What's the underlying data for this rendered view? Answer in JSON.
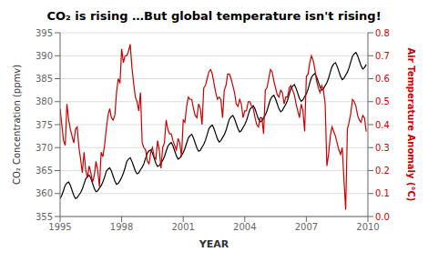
{
  "chart_data": {
    "type": "line",
    "title": "CO₂ is rising …But global temperature isn't rising!",
    "xlabel": "YEAR",
    "ylabel": "CO₂ Concentration (ppmv)",
    "y2label": "Air Temperature Anomaly (°C)",
    "xlim": [
      1995,
      2010
    ],
    "xticks": [
      1995,
      1998,
      2001,
      2004,
      2007,
      2010
    ],
    "ylim": [
      355,
      395
    ],
    "yticks": [
      355,
      360,
      365,
      370,
      375,
      380,
      385,
      390,
      395
    ],
    "y2lim": [
      0,
      0.8
    ],
    "y2ticks": [
      {
        "value": 0,
        "label": "0.0"
      },
      0.1,
      0.2,
      0.3,
      0.4,
      0.5,
      0.6,
      0.7,
      0.8
    ],
    "grid": true,
    "x": [
      1995.0,
      1995.083,
      1995.167,
      1995.25,
      1995.333,
      1995.417,
      1995.5,
      1995.583,
      1995.667,
      1995.75,
      1995.833,
      1995.917,
      1996.0,
      1996.083,
      1996.167,
      1996.25,
      1996.333,
      1996.417,
      1996.5,
      1996.583,
      1996.667,
      1996.75,
      1996.833,
      1996.917,
      1997.0,
      1997.083,
      1997.167,
      1997.25,
      1997.333,
      1997.417,
      1997.5,
      1997.583,
      1997.667,
      1997.75,
      1997.833,
      1997.917,
      1998.0,
      1998.083,
      1998.167,
      1998.25,
      1998.333,
      1998.417,
      1998.5,
      1998.583,
      1998.667,
      1998.75,
      1998.833,
      1998.917,
      1999.0,
      1999.083,
      1999.167,
      1999.25,
      1999.333,
      1999.417,
      1999.5,
      1999.583,
      1999.667,
      1999.75,
      1999.833,
      1999.917,
      2000.0,
      2000.083,
      2000.167,
      2000.25,
      2000.333,
      2000.417,
      2000.5,
      2000.583,
      2000.667,
      2000.75,
      2000.833,
      2000.917,
      2001.0,
      2001.083,
      2001.167,
      2001.25,
      2001.333,
      2001.417,
      2001.5,
      2001.583,
      2001.667,
      2001.75,
      2001.833,
      2001.917,
      2002.0,
      2002.083,
      2002.167,
      2002.25,
      2002.333,
      2002.417,
      2002.5,
      2002.583,
      2002.667,
      2002.75,
      2002.833,
      2002.917,
      2003.0,
      2003.083,
      2003.167,
      2003.25,
      2003.333,
      2003.417,
      2003.5,
      2003.583,
      2003.667,
      2003.75,
      2003.833,
      2003.917,
      2004.0,
      2004.083,
      2004.167,
      2004.25,
      2004.333,
      2004.417,
      2004.5,
      2004.583,
      2004.667,
      2004.75,
      2004.833,
      2004.917,
      2005.0,
      2005.083,
      2005.167,
      2005.25,
      2005.333,
      2005.417,
      2005.5,
      2005.583,
      2005.667,
      2005.75,
      2005.833,
      2005.917,
      2006.0,
      2006.083,
      2006.167,
      2006.25,
      2006.333,
      2006.417,
      2006.5,
      2006.583,
      2006.667,
      2006.75,
      2006.833,
      2006.917,
      2007.0,
      2007.083,
      2007.167,
      2007.25,
      2007.333,
      2007.417,
      2007.5,
      2007.583,
      2007.667,
      2007.75,
      2007.833,
      2007.917,
      2008.0,
      2008.083,
      2008.167,
      2008.25,
      2008.333,
      2008.417,
      2008.5,
      2008.583,
      2008.667,
      2008.75,
      2008.833,
      2008.917,
      2009.0,
      2009.083,
      2009.167,
      2009.25,
      2009.333,
      2009.417,
      2009.5,
      2009.583,
      2009.667,
      2009.75,
      2009.833,
      2009.917
    ],
    "series": [
      {
        "color": "#000000",
        "values": [
          358.9,
          359.6,
          360.7,
          361.8,
          362.3,
          362.5,
          361.8,
          360.7,
          359.6,
          358.9,
          359.1,
          359.7,
          360.2,
          361.0,
          362.1,
          363.2,
          363.7,
          364.0,
          363.3,
          362.2,
          361.1,
          360.4,
          360.6,
          361.2,
          361.7,
          362.5,
          363.6,
          364.8,
          365.3,
          365.6,
          364.9,
          363.8,
          362.7,
          362.0,
          362.2,
          362.8,
          363.5,
          364.4,
          365.6,
          367.0,
          367.5,
          367.8,
          367.0,
          366.0,
          364.9,
          364.3,
          364.5,
          365.2,
          365.7,
          366.5,
          367.7,
          368.8,
          369.3,
          369.5,
          368.8,
          367.7,
          366.6,
          365.9,
          366.1,
          366.7,
          367.2,
          368.0,
          369.2,
          370.3,
          370.8,
          371.1,
          370.4,
          369.3,
          368.2,
          367.5,
          367.7,
          368.3,
          368.9,
          369.8,
          371.0,
          372.1,
          372.6,
          372.9,
          372.1,
          371.0,
          369.9,
          369.2,
          369.4,
          370.1,
          370.7,
          371.6,
          372.8,
          374.1,
          374.6,
          374.9,
          374.1,
          373.0,
          371.9,
          371.2,
          371.5,
          372.2,
          372.8,
          373.7,
          375.0,
          376.2,
          376.7,
          377.0,
          376.3,
          375.2,
          374.1,
          373.4,
          373.7,
          374.4,
          375.0,
          375.9,
          377.1,
          378.3,
          378.8,
          379.1,
          378.4,
          377.3,
          376.2,
          375.6,
          375.8,
          376.5,
          377.1,
          378.0,
          379.3,
          380.5,
          381.1,
          381.4,
          380.6,
          379.5,
          378.4,
          377.8,
          378.1,
          378.8,
          379.4,
          380.3,
          381.6,
          382.8,
          383.4,
          383.7,
          382.9,
          381.8,
          380.7,
          380.1,
          380.4,
          381.1,
          381.7,
          382.7,
          384.1,
          385.3,
          385.8,
          386.1,
          385.4,
          384.3,
          383.2,
          382.5,
          382.8,
          383.5,
          384.1,
          385.1,
          386.4,
          387.6,
          388.2,
          388.5,
          387.7,
          386.6,
          385.5,
          384.8,
          385.1,
          385.8,
          386.4,
          387.4,
          388.7,
          389.9,
          390.4,
          390.7,
          390.0,
          388.9,
          387.8,
          387.1,
          387.4,
          388.1
        ]
      },
      {
        "color": "#cc0000",
        "axis": "y2",
        "values": [
          0.47,
          0.4,
          0.33,
          0.31,
          0.49,
          0.42,
          0.38,
          0.35,
          0.32,
          0.38,
          0.39,
          0.3,
          0.25,
          0.19,
          0.28,
          0.2,
          0.17,
          0.22,
          0.19,
          0.15,
          0.18,
          0.24,
          0.2,
          0.13,
          0.28,
          0.26,
          0.31,
          0.38,
          0.44,
          0.47,
          0.43,
          0.42,
          0.44,
          0.54,
          0.6,
          0.58,
          0.73,
          0.67,
          0.7,
          0.7,
          0.72,
          0.75,
          0.65,
          0.58,
          0.52,
          0.5,
          0.46,
          0.54,
          0.32,
          0.3,
          0.29,
          0.24,
          0.23,
          0.28,
          0.3,
          0.26,
          0.25,
          0.33,
          0.29,
          0.21,
          0.3,
          0.32,
          0.42,
          0.38,
          0.36,
          0.36,
          0.33,
          0.31,
          0.29,
          0.34,
          0.32,
          0.26,
          0.42,
          0.41,
          0.48,
          0.52,
          0.51,
          0.51,
          0.47,
          0.44,
          0.43,
          0.49,
          0.47,
          0.4,
          0.56,
          0.57,
          0.6,
          0.63,
          0.64,
          0.62,
          0.58,
          0.54,
          0.51,
          0.52,
          0.51,
          0.43,
          0.55,
          0.57,
          0.62,
          0.62,
          0.6,
          0.57,
          0.54,
          0.49,
          0.48,
          0.51,
          0.49,
          0.43,
          0.46,
          0.46,
          0.5,
          0.5,
          0.48,
          0.47,
          0.43,
          0.4,
          0.39,
          0.43,
          0.43,
          0.36,
          0.55,
          0.56,
          0.6,
          0.64,
          0.63,
          0.59,
          0.56,
          0.53,
          0.52,
          0.55,
          0.54,
          0.49,
          0.52,
          0.52,
          0.56,
          0.57,
          0.55,
          0.53,
          0.49,
          0.46,
          0.43,
          0.49,
          0.46,
          0.37,
          0.61,
          0.62,
          0.67,
          0.7,
          0.68,
          0.64,
          0.59,
          0.56,
          0.54,
          0.57,
          0.55,
          0.49,
          0.22,
          0.27,
          0.35,
          0.39,
          0.37,
          0.35,
          0.32,
          0.29,
          0.27,
          0.3,
          0.16,
          0.03,
          0.38,
          0.41,
          0.45,
          0.51,
          0.5,
          0.48,
          0.44,
          0.42,
          0.41,
          0.44,
          0.43,
          0.37
        ]
      }
    ]
  }
}
